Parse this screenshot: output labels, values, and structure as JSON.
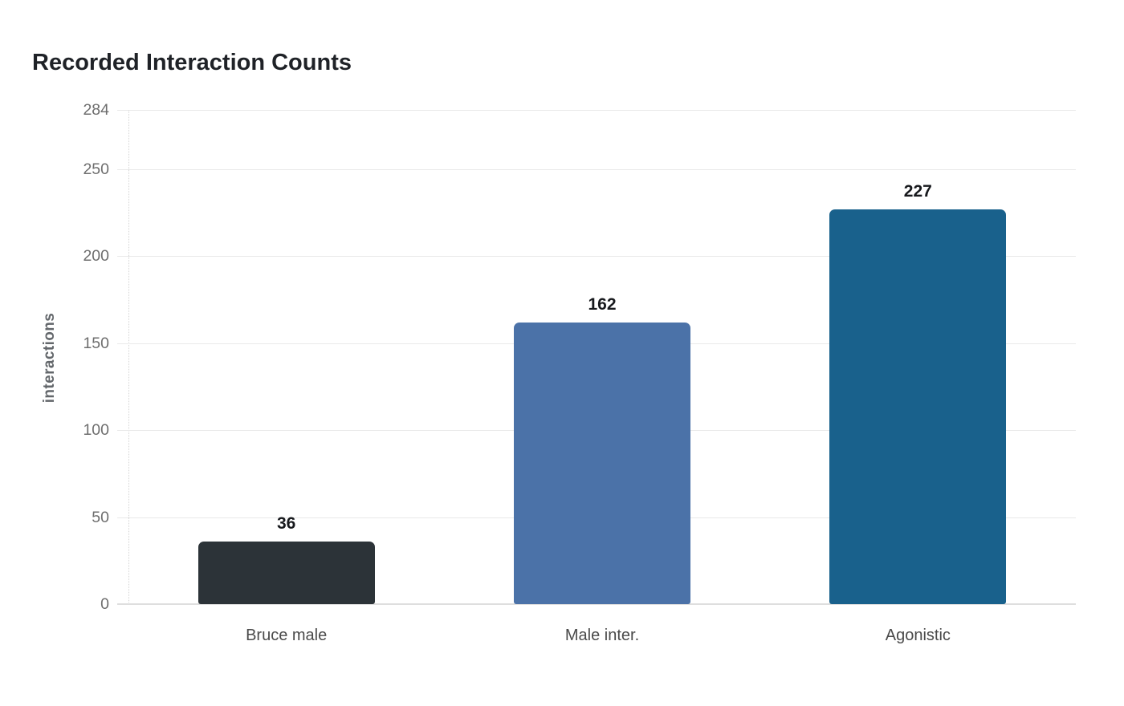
{
  "chart_data": {
    "type": "bar",
    "title": "Recorded Interaction Counts",
    "xlabel": "",
    "ylabel": "interactions",
    "categories": [
      "Bruce male",
      "Male inter.",
      "Agonistic"
    ],
    "values": [
      36,
      162,
      227
    ],
    "bar_colors": [
      "#2c3338",
      "#4b72a8",
      "#19618c"
    ],
    "yticks": [
      0,
      50,
      100,
      150,
      200,
      250,
      284
    ],
    "ylim": [
      0,
      284
    ],
    "grid": "horizontal",
    "legend": "none",
    "show_value_labels": true,
    "background": "#ffffff"
  }
}
